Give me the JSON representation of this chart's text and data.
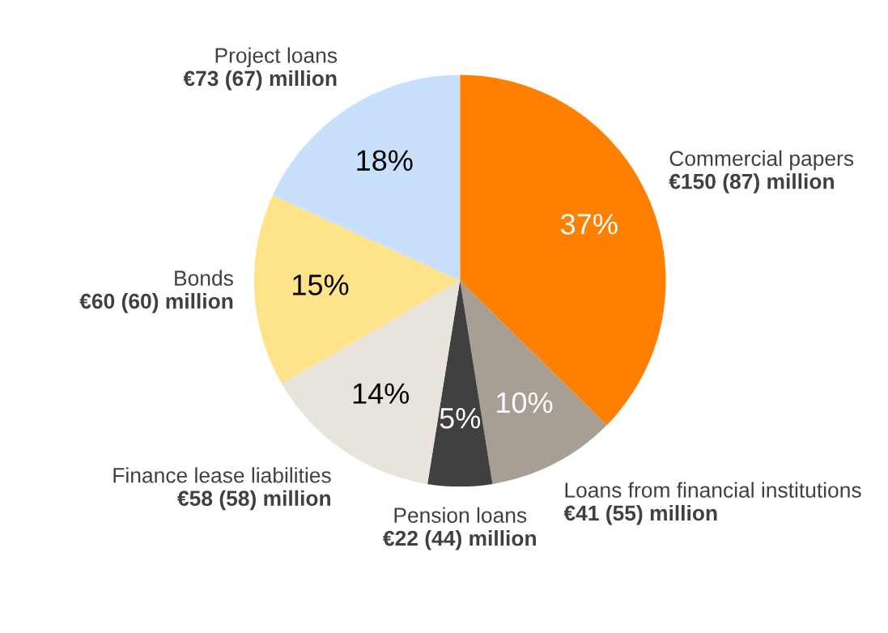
{
  "chart_data": {
    "type": "pie",
    "categories": [
      "Commercial papers",
      "Loans from financial institutions",
      "Pension loans",
      "Finance lease liabilities",
      "Bonds",
      "Project loans"
    ],
    "values": [
      37,
      10,
      5,
      14,
      15,
      18
    ],
    "value_labels": [
      "37%",
      "10%",
      "5%",
      "14%",
      "15%",
      "18%"
    ],
    "annotations": [
      "€150 (87) million",
      "€41 (55) million",
      "€22 (44) million",
      "€58 (58) million",
      "€60 (60) million",
      "€73 (67) million"
    ],
    "colors": [
      "#ff8000",
      "#a89f94",
      "#404040",
      "#e8e4dc",
      "#ffe38a",
      "#c8e0fc"
    ]
  }
}
